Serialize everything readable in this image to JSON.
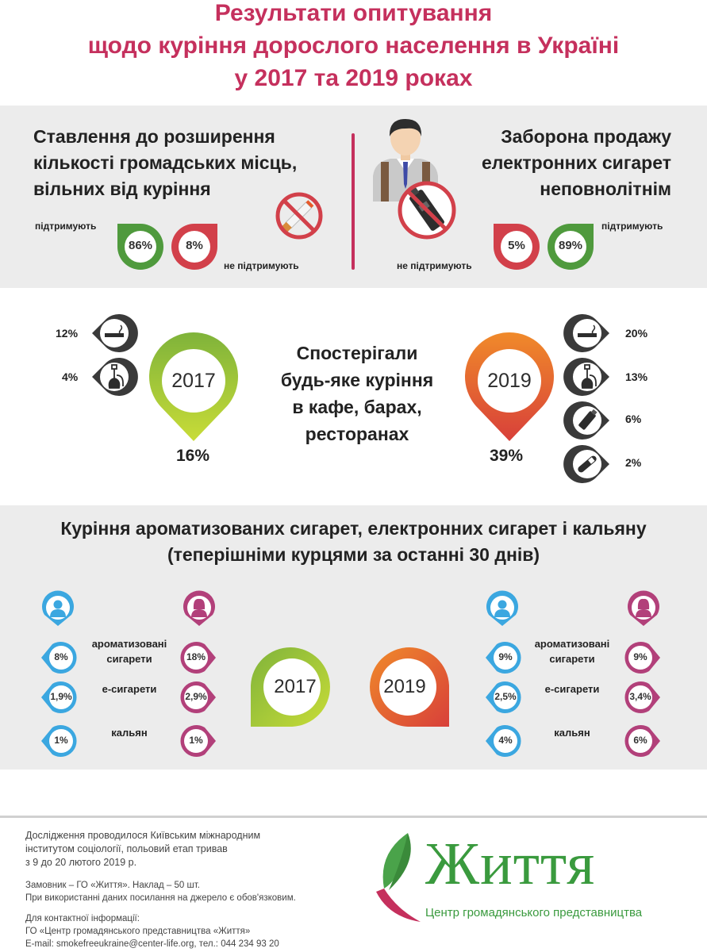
{
  "title": {
    "line1": "Результати опитування",
    "line2": "щодо куріння дорослого населення в Україні",
    "line3": "у 2017 та 2019 роках"
  },
  "section1": {
    "left": {
      "heading_l1": "Ставлення до розширення",
      "heading_l2": "кількості громадських місць,",
      "heading_l3": "вільних від куріння",
      "support_label": "підтримують",
      "support_value": "86%",
      "oppose_value": "8%",
      "oppose_label": "не підтримують"
    },
    "right": {
      "heading_l1": "Заборона продажу",
      "heading_l2": "електронних сигарет",
      "heading_l3": "неповнолітнім",
      "oppose_label": "не підтримують",
      "oppose_value": "5%",
      "support_value": "89%",
      "support_label": "підтримують"
    }
  },
  "section2": {
    "heading_l1": "Спостерігали",
    "heading_l2": "будь-яке куріння",
    "heading_l3": "в кафе, барах,",
    "heading_l4": "ресторанах",
    "year2017": "2017",
    "total2017": "16%",
    "items2017": [
      {
        "value": "12%",
        "icon": "cigarette-icon"
      },
      {
        "value": "4%",
        "icon": "hookah-icon"
      }
    ],
    "year2019": "2019",
    "total2019": "39%",
    "items2019": [
      {
        "value": "20%",
        "icon": "cigarette-icon"
      },
      {
        "value": "13%",
        "icon": "hookah-icon"
      },
      {
        "value": "6%",
        "icon": "e-cigarette-icon"
      },
      {
        "value": "2%",
        "icon": "heated-tobacco-icon"
      }
    ]
  },
  "section3": {
    "heading_l1": "Куріння ароматизованих сигарет, електронних сигарет і кальяну",
    "heading_l2": "(теперішніми курцями за останні 30 днів)",
    "y2017": {
      "year": "2017",
      "rows": [
        {
          "label_l1": "ароматизовані",
          "label_l2": "сигарети",
          "male": "8%",
          "female": "18%"
        },
        {
          "label_l1": "е-сигарети",
          "label_l2": "",
          "male": "1,9%",
          "female": "2,9%"
        },
        {
          "label_l1": "кальян",
          "label_l2": "",
          "male": "1%",
          "female": "1%"
        }
      ]
    },
    "y2019": {
      "year": "2019",
      "rows": [
        {
          "label_l1": "ароматизовані",
          "label_l2": "сигарети",
          "male": "9%",
          "female": "9%"
        },
        {
          "label_l1": "е-сигарети",
          "label_l2": "",
          "male": "2,5%",
          "female": "3,4%"
        },
        {
          "label_l1": "кальян",
          "label_l2": "",
          "male": "4%",
          "female": "6%"
        }
      ]
    }
  },
  "footer": {
    "p1_l1": "Дослідження проводилося Київським міжнародним",
    "p1_l2": "інститутом соціології, польовий етап тривав",
    "p1_l3": "з 9 до 20 лютого 2019 р.",
    "p2_l1": "Замовник – ГО «Життя». Наклад – 50 шт.",
    "p2_l2": "При використанні даних посилання на джерело є обов'язковим.",
    "p3_l1": "Для контактної інформації:",
    "p3_l2": "ГО «Центр громадянського представництва «Життя»",
    "p3_l3": "E-mail: smokefreeukraine@center-life.org, тел.: 044 234 93 20",
    "logo_word": "Життя",
    "logo_sub": "Центр громадянського представництва"
  },
  "colors": {
    "title": "#c5305d",
    "green": "#4f9a3d",
    "red": "#d2404a",
    "lime": "#a8c93a",
    "orange": "#ee7b2a",
    "blue": "#3ba7e0",
    "magenta": "#b2407a",
    "dark": "#3a3a3a",
    "band": "#ececec",
    "logo_green": "#3a9a3e"
  }
}
